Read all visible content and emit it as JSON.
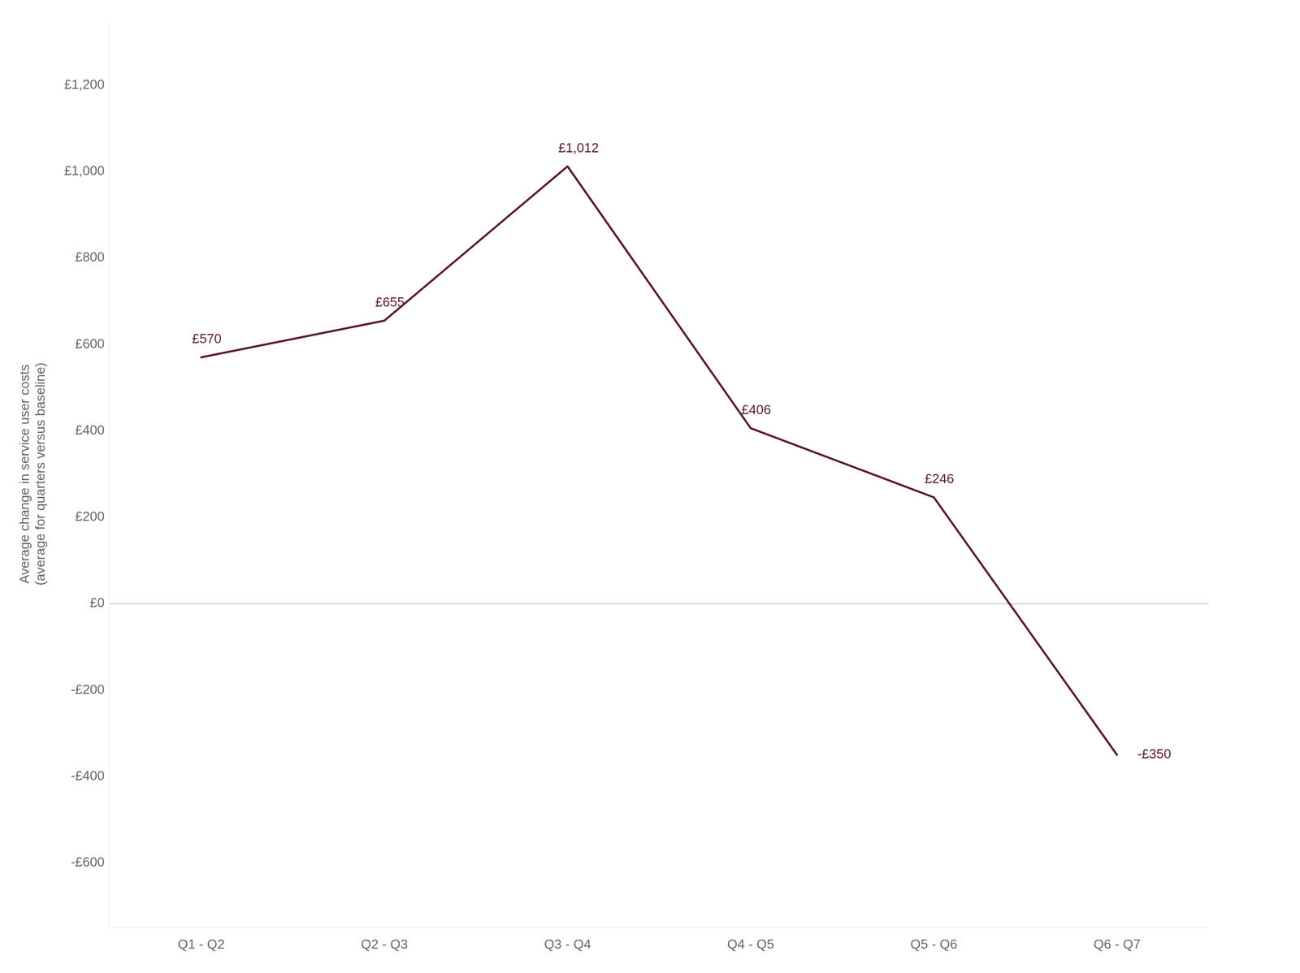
{
  "chart_data": {
    "type": "line",
    "categories": [
      "Q1 - Q2",
      "Q2 - Q3",
      "Q3 - Q4",
      "Q4 - Q5",
      "Q5 - Q6",
      "Q6 - Q7"
    ],
    "values": [
      570,
      655,
      1012,
      406,
      246,
      -350
    ],
    "value_labels": [
      "£570",
      "£655",
      "£1,012",
      "£406",
      "£246",
      "-£350"
    ],
    "data_labels": true,
    "color": "#5b1a2e",
    "y_label": "Average change in service user costs\n(average for quarters versus baseline)",
    "ylim": [
      -750,
      1350
    ],
    "yticks": [
      {
        "value": -600,
        "label": "-£600"
      },
      {
        "value": -400,
        "label": "-£400"
      },
      {
        "value": -200,
        "label": "-£200"
      },
      {
        "value": 0,
        "label": "£0"
      },
      {
        "value": 200,
        "label": "£200"
      },
      {
        "value": 400,
        "label": "£400"
      },
      {
        "value": 600,
        "label": "£600"
      },
      {
        "value": 800,
        "label": "£800"
      },
      {
        "value": 1000,
        "label": "£1,000"
      },
      {
        "value": 1200,
        "label": "£1,200"
      }
    ],
    "grid": false,
    "legend": false
  }
}
